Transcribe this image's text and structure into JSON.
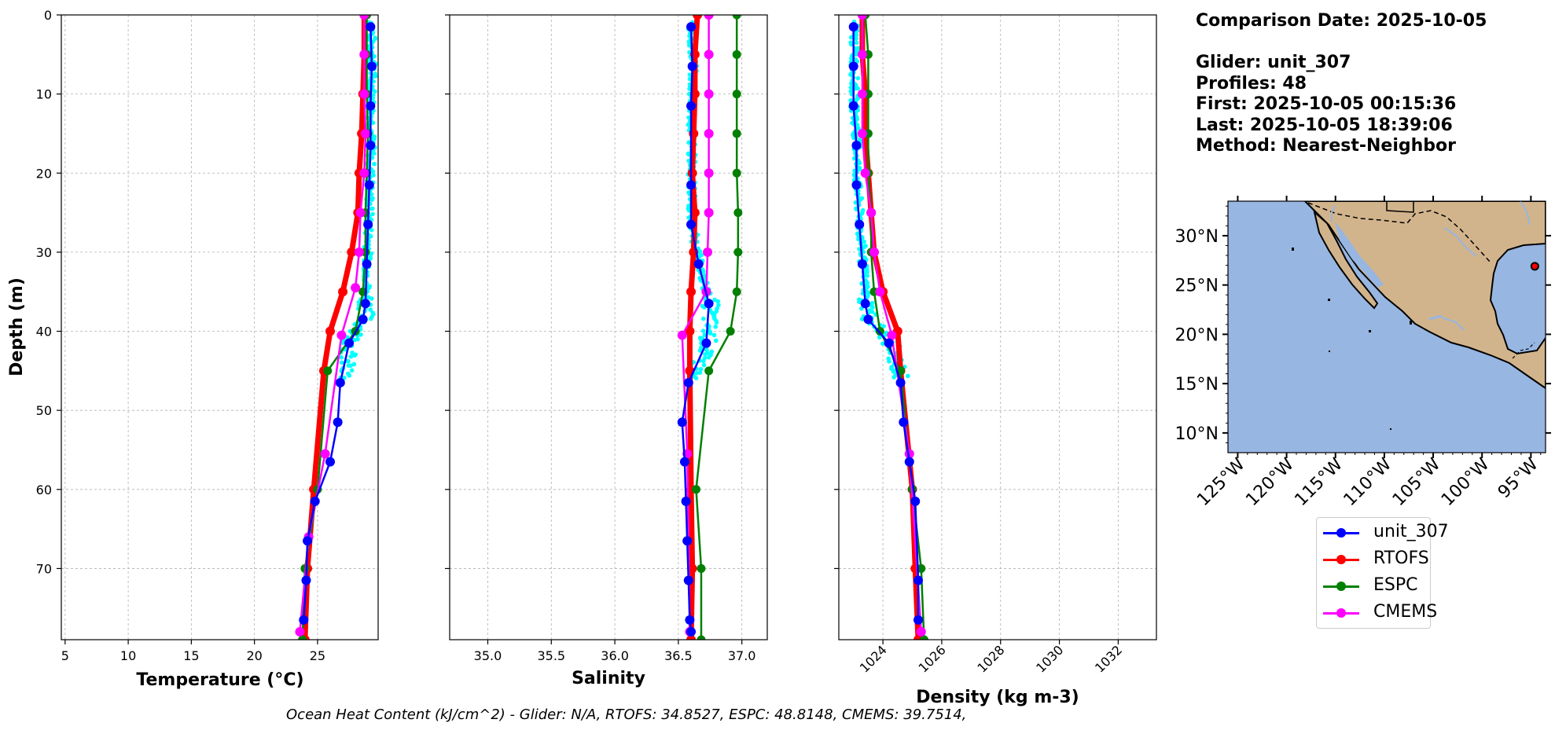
{
  "info": {
    "comparison_date": "Comparison Date: 2025-10-05",
    "glider": "Glider: unit_307",
    "profiles": "Profiles: 48",
    "first": "First: 2025-10-05 00:15:36",
    "last": "Last: 2025-10-05 18:39:06",
    "method": "Method: Nearest-Neighbor"
  },
  "footer": "Ocean Heat Content (kJ/cm^2) - Glider: N/A,  RTOFS: 34.8527,  ESPC: 48.8148,  CMEMS: 39.7514,",
  "colors": {
    "unit_307": "#0000ff",
    "RTOFS": "#ff0000",
    "ESPC": "#008000",
    "CMEMS": "#ff00ff",
    "glider_points": "#00ffff",
    "ocean": "#97b6e1",
    "land": "#d2b48c"
  },
  "legend": [
    {
      "name": "unit_307",
      "color": "#0000ff"
    },
    {
      "name": "RTOFS",
      "color": "#ff0000"
    },
    {
      "name": "ESPC",
      "color": "#008000"
    },
    {
      "name": "CMEMS",
      "color": "#ff00ff"
    }
  ],
  "chart_data": [
    {
      "type": "line",
      "xlabel": "Temperature (°C)",
      "ylabel": "Depth (m)",
      "xlim": [
        4.7,
        29.8
      ],
      "ylim": [
        79,
        0
      ],
      "xticks": [
        5,
        10,
        15,
        20,
        25
      ],
      "yticks": [
        0,
        10,
        20,
        30,
        40,
        50,
        60,
        70
      ],
      "grid": true,
      "series": [
        {
          "name": "RTOFS",
          "x": [
            28.7,
            28.7,
            28.6,
            28.5,
            28.3,
            28.2,
            27.7,
            27.0,
            26.0,
            25.5,
            24.7,
            24.2,
            24.0
          ],
          "y": [
            0,
            5,
            10,
            15,
            20,
            25,
            30,
            35,
            40,
            45,
            60,
            70,
            79
          ]
        },
        {
          "name": "ESPC",
          "x": [
            28.9,
            28.9,
            28.9,
            29.0,
            28.9,
            28.8,
            28.8,
            28.6,
            28.0,
            25.8,
            25.0,
            24.0,
            23.8
          ],
          "y": [
            0,
            5,
            10,
            15,
            20,
            25,
            30,
            35,
            40,
            45,
            60,
            70,
            79
          ]
        },
        {
          "name": "CMEMS",
          "x": [
            28.7,
            28.7,
            28.7,
            28.8,
            28.7,
            28.4,
            28.3,
            28.0,
            26.9,
            25.6,
            24.3,
            23.6
          ],
          "y": [
            0,
            5,
            10,
            15,
            20,
            25,
            30,
            34.5,
            40.5,
            55.5,
            66,
            78
          ]
        },
        {
          "name": "unit_307",
          "x": [
            29.2,
            29.3,
            29.2,
            29.2,
            29.1,
            29.0,
            28.9,
            28.8,
            28.6,
            27.5,
            26.8,
            26.6,
            26.0,
            24.8,
            24.2,
            24.1,
            23.9
          ],
          "y": [
            1.5,
            6.5,
            11.5,
            16.5,
            21.5,
            26.5,
            31.5,
            36.5,
            38.5,
            41.5,
            46.5,
            51.5,
            56.5,
            61.5,
            66.5,
            71.5,
            76.5
          ]
        }
      ]
    },
    {
      "type": "line",
      "xlabel": "Salinity",
      "xlim": [
        34.7,
        37.2
      ],
      "ylim": [
        79,
        0
      ],
      "xticks": [
        35.0,
        35.5,
        36.0,
        36.5,
        37.0
      ],
      "yticks": [
        0,
        10,
        20,
        30,
        40,
        50,
        60,
        70
      ],
      "grid": true,
      "series": [
        {
          "name": "RTOFS",
          "x": [
            36.65,
            36.63,
            36.63,
            36.62,
            36.61,
            36.63,
            36.62,
            36.6,
            36.59,
            36.59,
            36.6,
            36.61,
            36.6
          ],
          "y": [
            0,
            5,
            10,
            15,
            20,
            25,
            30,
            35,
            40,
            45,
            60,
            70,
            79
          ]
        },
        {
          "name": "ESPC",
          "x": [
            36.96,
            36.96,
            36.96,
            36.96,
            36.96,
            36.97,
            36.97,
            36.96,
            36.91,
            36.74,
            36.64,
            36.68,
            36.68
          ],
          "y": [
            0,
            5,
            10,
            15,
            20,
            25,
            30,
            35,
            40,
            45,
            60,
            70,
            79
          ]
        },
        {
          "name": "CMEMS",
          "x": [
            36.74,
            36.74,
            36.74,
            36.74,
            36.74,
            36.74,
            36.73,
            36.72,
            36.53,
            36.57,
            36.59
          ],
          "y": [
            0,
            5,
            10,
            15,
            20,
            25,
            30,
            35,
            40.5,
            55.5,
            78
          ]
        },
        {
          "name": "unit_307",
          "x": [
            36.6,
            36.61,
            36.6,
            36.6,
            36.6,
            36.66,
            36.74,
            36.72,
            36.58,
            36.53,
            36.55,
            36.56,
            36.57,
            36.58,
            36.59,
            36.6
          ],
          "y": [
            1.5,
            6.5,
            11.5,
            21.5,
            26.5,
            31.5,
            36.5,
            41.5,
            46.5,
            51.5,
            56.5,
            61.5,
            66.5,
            71.5,
            76.5,
            78
          ]
        }
      ]
    },
    {
      "type": "line",
      "xlabel": "Density (kg m-3)",
      "xlim": [
        1022.5,
        1033.3
      ],
      "ylim": [
        79,
        0
      ],
      "xticks": [
        1024,
        1026,
        1028,
        1030,
        1032
      ],
      "yticks": [
        0,
        10,
        20,
        30,
        40,
        50,
        60,
        70
      ],
      "grid": true,
      "series": [
        {
          "name": "RTOFS",
          "x": [
            1023.3,
            1023.3,
            1023.4,
            1023.4,
            1023.5,
            1023.6,
            1023.7,
            1024.0,
            1024.5,
            1024.6,
            1025.0,
            1025.1,
            1025.2
          ],
          "y": [
            0,
            5,
            10,
            15,
            20,
            25,
            30,
            35,
            40,
            45,
            60,
            70,
            79
          ]
        },
        {
          "name": "ESPC",
          "x": [
            1023.4,
            1023.5,
            1023.5,
            1023.5,
            1023.5,
            1023.6,
            1023.6,
            1023.7,
            1023.9,
            1024.6,
            1025.0,
            1025.3,
            1025.4
          ],
          "y": [
            0,
            5,
            10,
            15,
            20,
            25,
            30,
            35,
            40,
            45,
            60,
            70,
            79
          ]
        },
        {
          "name": "CMEMS",
          "x": [
            1023.3,
            1023.3,
            1023.3,
            1023.3,
            1023.4,
            1023.6,
            1023.7,
            1023.9,
            1024.3,
            1024.9,
            1025.3
          ],
          "y": [
            0,
            5,
            10,
            15,
            20,
            25,
            30,
            35,
            40.5,
            55.5,
            78
          ]
        },
        {
          "name": "unit_307",
          "x": [
            1023.0,
            1023.0,
            1023.0,
            1023.1,
            1023.1,
            1023.2,
            1023.3,
            1023.4,
            1023.5,
            1024.2,
            1024.6,
            1024.7,
            1024.9,
            1025.1,
            1025.2,
            1025.2
          ],
          "y": [
            1.5,
            6.5,
            11.5,
            16.5,
            21.5,
            26.5,
            31.5,
            36.5,
            38.5,
            41.5,
            46.5,
            51.5,
            56.5,
            61.5,
            71.5,
            76.5
          ]
        }
      ]
    },
    {
      "type": "map",
      "lat_ticks": [
        "10°N",
        "15°N",
        "20°N",
        "25°N",
        "30°N"
      ],
      "lon_ticks": [
        "125°W",
        "120°W",
        "115°W",
        "110°W",
        "105°W",
        "100°W",
        "95°W"
      ],
      "lat_range": [
        8,
        33.5
      ],
      "lon_range": [
        -126,
        -93.5
      ],
      "glider_location": {
        "lon": -94.6,
        "lat": 26.9
      }
    }
  ]
}
